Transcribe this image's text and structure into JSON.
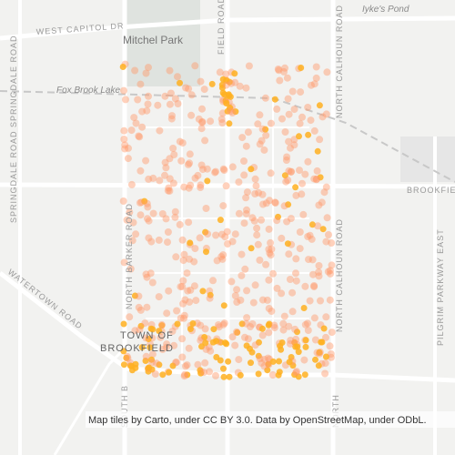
{
  "map": {
    "labels": {
      "west_capitol": "WEST CAPITOL DR",
      "mitchel_park": "Mitchel Park",
      "fox_brook_lake": "Fox Brook Lake",
      "iykes_pond": "Iyke's Pond",
      "springdale_1": "SPRINGDALE ROAD",
      "springdale_2": "SPRINGDALE ROAD",
      "north_barker": "NORTH BARKER ROAD",
      "north_calhoun_1": "NORTH CALHOUN ROAD",
      "north_calhoun_2": "NORTH CALHOUN ROAD",
      "brookfield": "BROOKFIELD",
      "pilgrim": "PILGRIM PARKWAY EAST",
      "watertown": "WATERTOWN ROAD",
      "town_1": "TOWN OF",
      "town_2": "BROOKFIELD",
      "field_road": "FIELD ROAD",
      "south_b": "SOUTH B",
      "north_bottom": "NORTH"
    },
    "attribution": "Map tiles by Carto, under CC BY 3.0. Data by OpenStreetMap, under ODbL."
  }
}
